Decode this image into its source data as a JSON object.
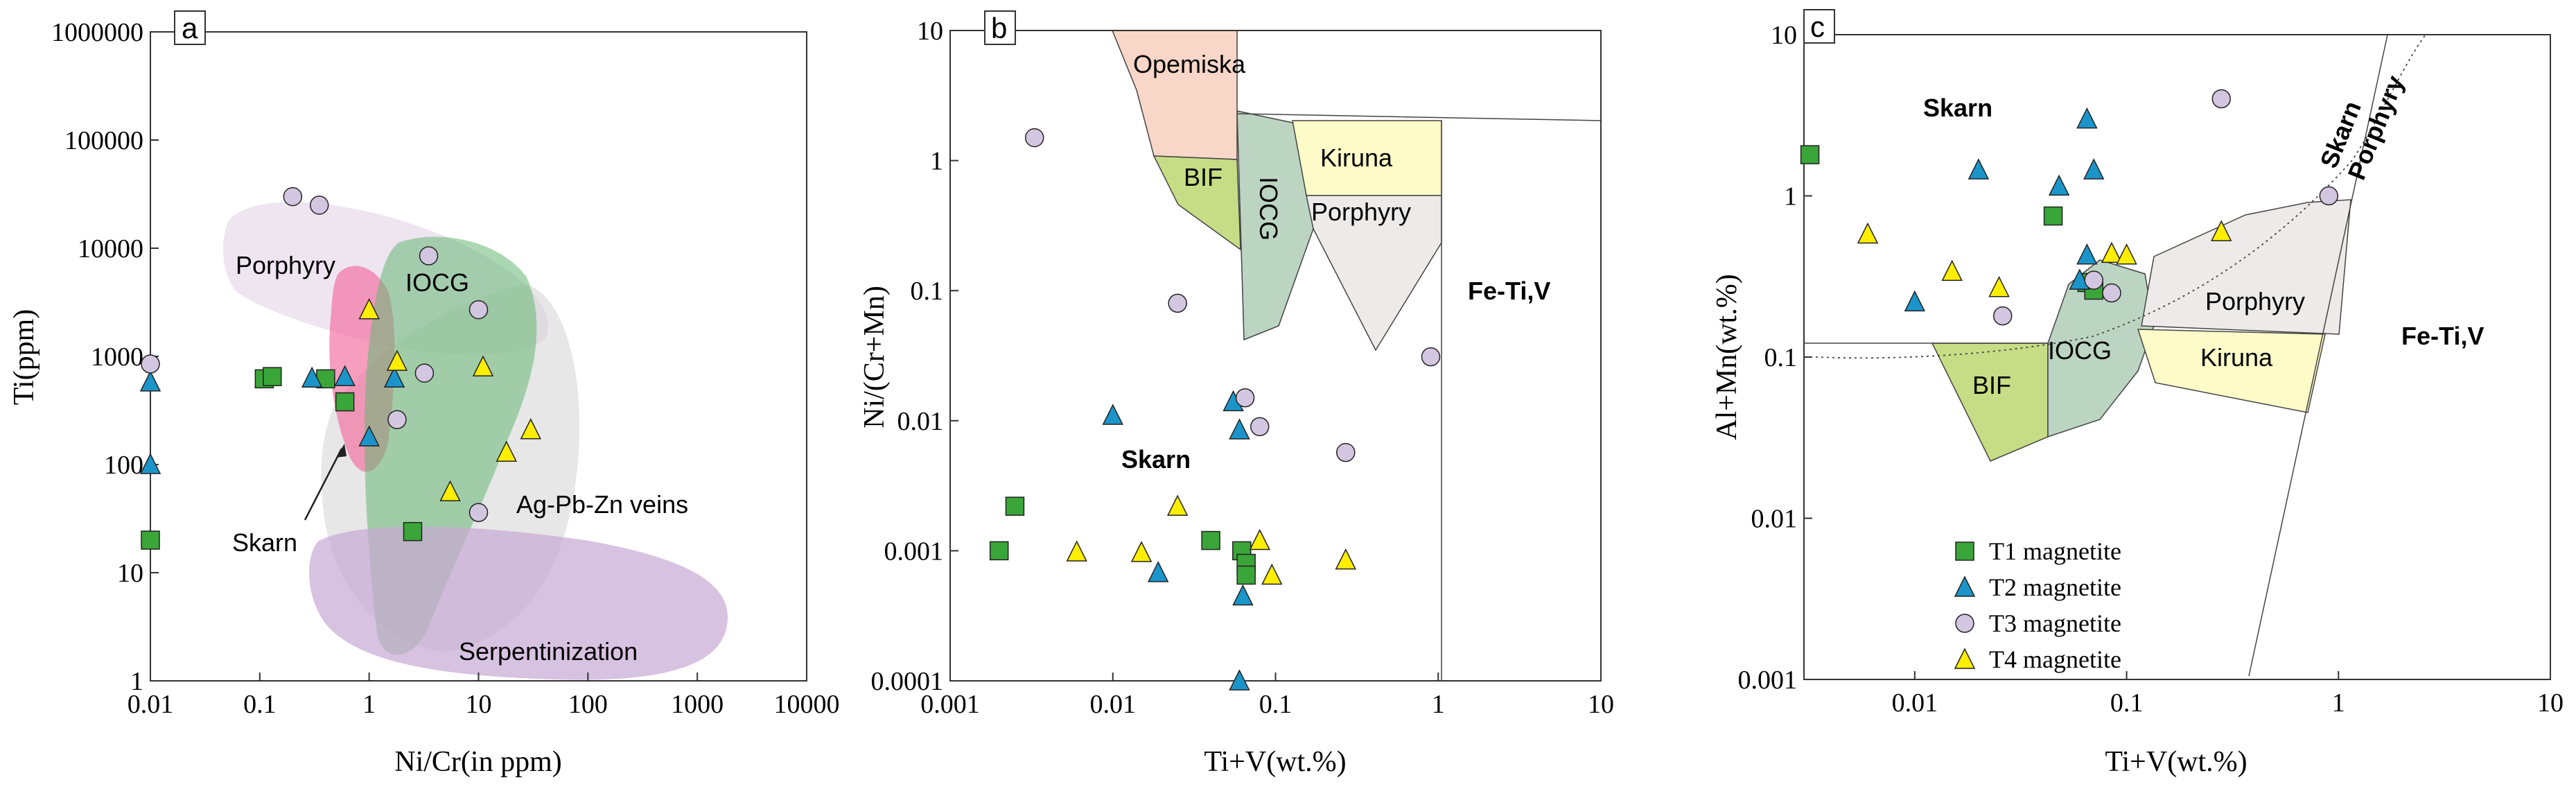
{
  "colors": {
    "t1": "#3aa538",
    "t2": "#1b95c9",
    "t3": "#d3c6e0",
    "t4": "#ffee00",
    "axis": "#333333",
    "porphyry_a": "#ece2f0",
    "skarn_a": "#f36a9c",
    "iocg_a": "#66b872",
    "agpbzn_a": "#d3d3d3",
    "serp_a": "#c8a8d4",
    "opemiska": "#f8d6c8",
    "bif": "#c6dd86",
    "iocg_field": "#bcd5c2",
    "kiruna": "#fdfbc8",
    "porphyry_field": "#eeeae9"
  },
  "legend": {
    "entries": [
      {
        "key": "t1",
        "label": "T1 magnetite",
        "marker": "square"
      },
      {
        "key": "t2",
        "label": "T2 magnetite",
        "marker": "triangle"
      },
      {
        "key": "t3",
        "label": "T3 magnetite",
        "marker": "circle"
      },
      {
        "key": "t4",
        "label": "T4 magnetite",
        "marker": "triangle"
      }
    ]
  },
  "chart_data": [
    {
      "panel": "a",
      "type": "scatter",
      "xlabel": "Ni/Cr(in ppm)",
      "ylabel": "Ti(ppm)",
      "xscale": "log",
      "yscale": "log",
      "xlim": [
        0.01,
        10000
      ],
      "ylim": [
        1,
        1000000
      ],
      "xticks": [
        "0.01",
        "0.1",
        "1",
        "10",
        "100",
        "1000",
        "10000"
      ],
      "yticks": [
        "1",
        "10",
        "100",
        "1000",
        "10000",
        "100000",
        "1000000"
      ],
      "field_labels": [
        "Porphyry",
        "IOCG",
        "Skarn",
        "Ag-Pb-Zn veins",
        "Serpentinization"
      ],
      "series": [
        {
          "name": "T1 magnetite",
          "points": [
            [
              0.01,
              20
            ],
            [
              0.11,
              620
            ],
            [
              0.13,
              650
            ],
            [
              0.4,
              620
            ],
            [
              0.6,
              380
            ],
            [
              2.5,
              24
            ]
          ]
        },
        {
          "name": "T2 magnetite",
          "points": [
            [
              0.01,
              580
            ],
            [
              0.01,
              100
            ],
            [
              0.3,
              630
            ],
            [
              0.6,
              650
            ],
            [
              1.0,
              180
            ],
            [
              1.7,
              630
            ]
          ]
        },
        {
          "name": "T3 magnetite",
          "points": [
            [
              0.01,
              850
            ],
            [
              0.2,
              30000
            ],
            [
              0.35,
              25000
            ],
            [
              1.8,
              260
            ],
            [
              3.2,
              700
            ],
            [
              3.5,
              8500
            ],
            [
              10,
              2700
            ],
            [
              10,
              36
            ]
          ]
        },
        {
          "name": "T4 magnetite",
          "points": [
            [
              1.0,
              2700
            ],
            [
              1.8,
              900
            ],
            [
              5.5,
              56
            ],
            [
              11,
              800
            ],
            [
              18,
              130
            ],
            [
              30,
              210
            ]
          ]
        }
      ]
    },
    {
      "panel": "b",
      "type": "scatter",
      "xlabel": "Ti+V(wt.%)",
      "ylabel": "Ni/(Cr+Mn)",
      "xscale": "log",
      "yscale": "log",
      "xlim": [
        0.001,
        10
      ],
      "ylim": [
        0.0001,
        10
      ],
      "xticks": [
        "0.001",
        "0.01",
        "0.1",
        "1",
        "10"
      ],
      "yticks": [
        "0.0001",
        "0.001",
        "0.01",
        "0.1",
        "1",
        "10"
      ],
      "field_labels": [
        "Opemiska",
        "BIF",
        "IOCG",
        "Kiruna",
        "Porphyry",
        "Fe-Ti,V",
        "Skarn"
      ],
      "series": [
        {
          "name": "T1 magnetite",
          "points": [
            [
              0.002,
              0.001
            ],
            [
              0.0025,
              0.0022
            ],
            [
              0.04,
              0.0012
            ],
            [
              0.062,
              0.001
            ],
            [
              0.066,
              0.0008
            ],
            [
              0.066,
              0.00065
            ]
          ]
        },
        {
          "name": "T2 magnetite",
          "points": [
            [
              0.01,
              0.011
            ],
            [
              0.019,
              0.00068
            ],
            [
              0.055,
              0.014
            ],
            [
              0.06,
              0.0085
            ],
            [
              0.063,
              0.00045
            ],
            [
              0.06,
              0.0001
            ]
          ]
        },
        {
          "name": "T3 magnetite",
          "points": [
            [
              0.0033,
              1.5
            ],
            [
              0.025,
              0.08
            ],
            [
              0.065,
              0.015
            ],
            [
              0.08,
              0.009
            ],
            [
              0.27,
              0.0057
            ],
            [
              0.9,
              0.031
            ]
          ]
        },
        {
          "name": "T4 magnetite",
          "points": [
            [
              0.006,
              0.00098
            ],
            [
              0.015,
              0.00097
            ],
            [
              0.025,
              0.0022
            ],
            [
              0.08,
              0.0012
            ],
            [
              0.095,
              0.00065
            ],
            [
              0.27,
              0.00085
            ]
          ]
        }
      ]
    },
    {
      "panel": "c",
      "type": "scatter",
      "xlabel": "Ti+V(wt.%)",
      "ylabel": "Al+Mn(wt.%)",
      "xscale": "log",
      "yscale": "log",
      "xlim": [
        0.003,
        10
      ],
      "ylim": [
        0.001,
        10
      ],
      "xticks": [
        "0.01",
        "0.1",
        "1",
        "10"
      ],
      "yticks": [
        "0.001",
        "0.01",
        "0.1",
        "1",
        "10"
      ],
      "field_labels": [
        "Skarn",
        "Skarn",
        "Porphyry",
        "Porphyry",
        "IOCG",
        "BIF",
        "Kiruna",
        "Fe-Ti,V"
      ],
      "series": [
        {
          "name": "T1 magnetite",
          "points": [
            [
              0.0032,
              1.8
            ],
            [
              0.045,
              0.75
            ],
            [
              0.065,
              0.29
            ],
            [
              0.07,
              0.26
            ]
          ]
        },
        {
          "name": "T2 magnetite",
          "points": [
            [
              0.01,
              0.22
            ],
            [
              0.02,
              1.45
            ],
            [
              0.048,
              1.15
            ],
            [
              0.06,
              0.3
            ],
            [
              0.065,
              0.43
            ],
            [
              0.065,
              3.0
            ],
            [
              0.07,
              1.45
            ]
          ]
        },
        {
          "name": "T3 magnetite",
          "points": [
            [
              0.026,
              0.18
            ],
            [
              0.07,
              0.3
            ],
            [
              0.085,
              0.25
            ],
            [
              0.28,
              4.0
            ],
            [
              0.9,
              1.0
            ]
          ]
        },
        {
          "name": "T4 magnetite",
          "points": [
            [
              0.006,
              0.58
            ],
            [
              0.015,
              0.34
            ],
            [
              0.025,
              0.27
            ],
            [
              0.085,
              0.44
            ],
            [
              0.1,
              0.43
            ],
            [
              0.28,
              0.6
            ]
          ]
        }
      ]
    }
  ]
}
